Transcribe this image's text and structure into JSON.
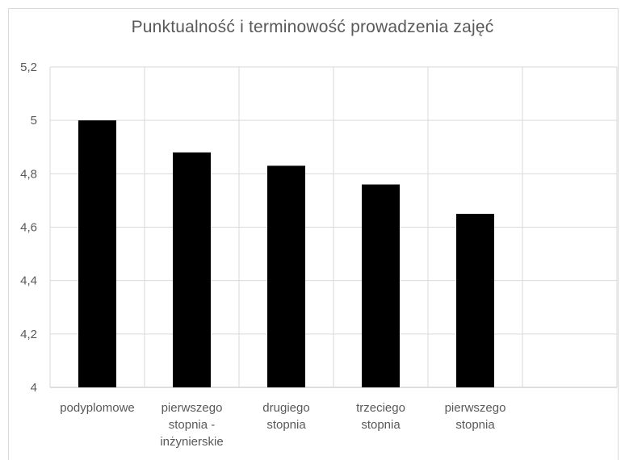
{
  "chart_data": {
    "type": "bar",
    "title": "Punktualność i terminowość prowadzenia zajęć",
    "xlabel": "",
    "ylabel": "",
    "categories": [
      [
        "podyplomowe"
      ],
      [
        "pierwszego",
        "stopnia -",
        "inżynierskie"
      ],
      [
        "drugiego",
        "stopnia"
      ],
      [
        "trzeciego",
        "stopnia"
      ],
      [
        "pierwszego",
        "stopnia"
      ]
    ],
    "values": [
      5.0,
      4.88,
      4.83,
      4.76,
      4.65
    ],
    "ylim": [
      4,
      5.2
    ],
    "yticks": [
      "4",
      "4,2",
      "4,4",
      "4,6",
      "4,8",
      "5",
      "5,2"
    ],
    "grid": true,
    "bar_color": "#000000",
    "legend": "none"
  }
}
